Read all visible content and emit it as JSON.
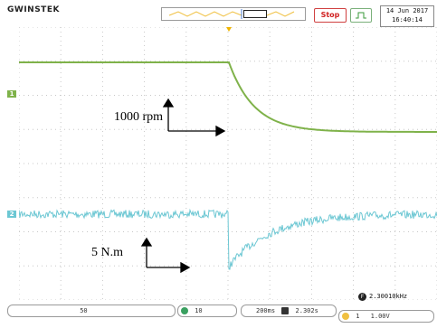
{
  "header": {
    "brand": "GWINSTEK",
    "stop_label": "Stop",
    "trigger_mode_icon": "single-pulse-icon",
    "date": "14 Jun 2017",
    "time": "16:40:14"
  },
  "annotations": {
    "speed": "1000 rpm",
    "torque": "5 N.m"
  },
  "channels": {
    "ch1_marker": "1",
    "ch2_marker": "2",
    "ch1_color": "#7fb24a",
    "ch2_color": "#6cc7d3"
  },
  "footer": {
    "ch_a_scale": "50",
    "ch_b_scale": "10",
    "timebase": "200ms",
    "position": "2.302s",
    "frequency": "2.30010kHz",
    "trigger_level": "1.00V",
    "trigger_channel": "1"
  },
  "colors": {
    "grid": "#c8c8c8",
    "trigger_marker": "#f0b400"
  }
}
